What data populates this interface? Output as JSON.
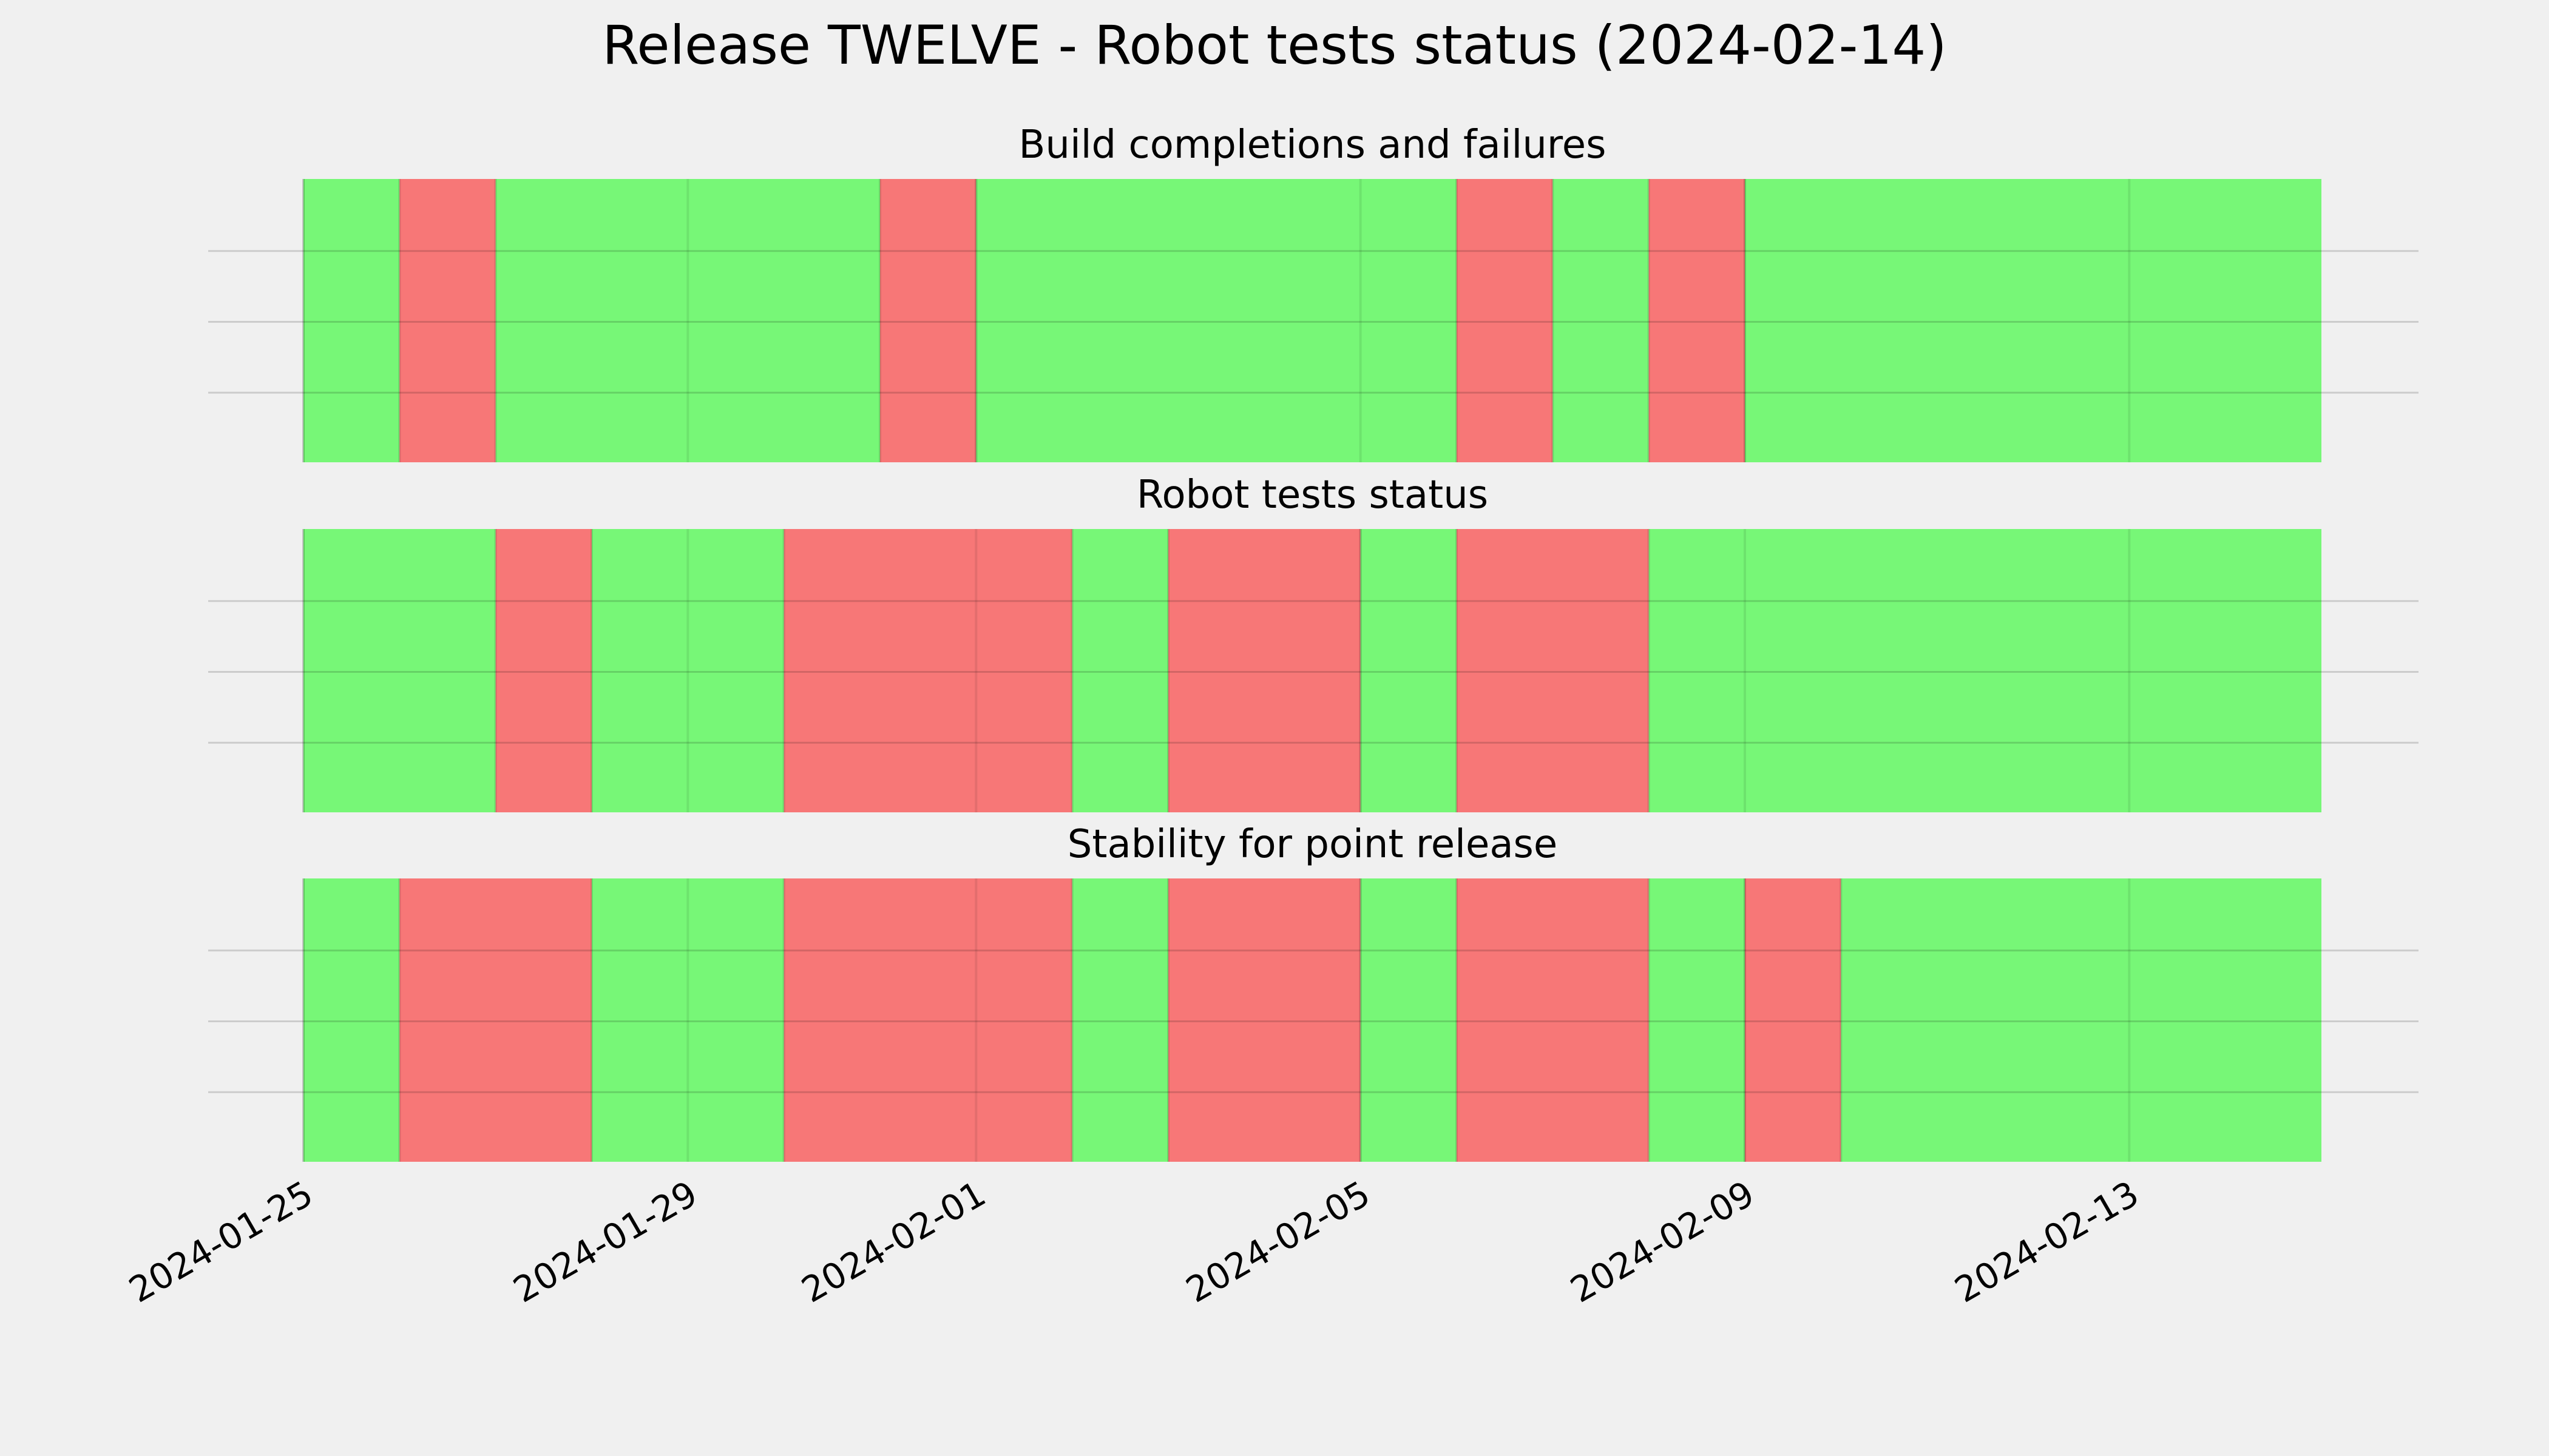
{
  "chart_data": {
    "type": "timeline-status",
    "title": "Release TWELVE - Robot tests status (2024-02-14)",
    "x_axis": {
      "start": "2024-01-25",
      "end": "2024-02-15",
      "tick_labels": [
        "2024-01-25",
        "2024-01-29",
        "2024-02-01",
        "2024-02-05",
        "2024-02-09",
        "2024-02-13"
      ]
    },
    "grid": true,
    "colors": {
      "pass": "#77f777",
      "fail": "#f77777",
      "background": "#f0f0f0"
    },
    "panels": [
      {
        "title": "Build completions and failures",
        "segments": [
          {
            "start": "2024-01-25",
            "end": "2024-01-26",
            "status": "pass"
          },
          {
            "start": "2024-01-26",
            "end": "2024-01-27",
            "status": "fail"
          },
          {
            "start": "2024-01-27",
            "end": "2024-01-31",
            "status": "pass"
          },
          {
            "start": "2024-01-31",
            "end": "2024-02-01",
            "status": "fail"
          },
          {
            "start": "2024-02-01",
            "end": "2024-02-06",
            "status": "pass"
          },
          {
            "start": "2024-02-06",
            "end": "2024-02-07",
            "status": "fail"
          },
          {
            "start": "2024-02-07",
            "end": "2024-02-08",
            "status": "pass"
          },
          {
            "start": "2024-02-08",
            "end": "2024-02-09",
            "status": "fail"
          },
          {
            "start": "2024-02-09",
            "end": "2024-02-15",
            "status": "pass"
          }
        ]
      },
      {
        "title": "Robot tests status",
        "segments": [
          {
            "start": "2024-01-25",
            "end": "2024-01-27",
            "status": "pass"
          },
          {
            "start": "2024-01-27",
            "end": "2024-01-28",
            "status": "fail"
          },
          {
            "start": "2024-01-28",
            "end": "2024-01-30",
            "status": "pass"
          },
          {
            "start": "2024-01-30",
            "end": "2024-02-02",
            "status": "fail"
          },
          {
            "start": "2024-02-02",
            "end": "2024-02-03",
            "status": "pass"
          },
          {
            "start": "2024-02-03",
            "end": "2024-02-05",
            "status": "fail"
          },
          {
            "start": "2024-02-05",
            "end": "2024-02-06",
            "status": "pass"
          },
          {
            "start": "2024-02-06",
            "end": "2024-02-08",
            "status": "fail"
          },
          {
            "start": "2024-02-08",
            "end": "2024-02-15",
            "status": "pass"
          }
        ]
      },
      {
        "title": "Stability for point release",
        "segments": [
          {
            "start": "2024-01-25",
            "end": "2024-01-26",
            "status": "pass"
          },
          {
            "start": "2024-01-26",
            "end": "2024-01-28",
            "status": "fail"
          },
          {
            "start": "2024-01-28",
            "end": "2024-01-30",
            "status": "pass"
          },
          {
            "start": "2024-01-30",
            "end": "2024-02-02",
            "status": "fail"
          },
          {
            "start": "2024-02-02",
            "end": "2024-02-03",
            "status": "pass"
          },
          {
            "start": "2024-02-03",
            "end": "2024-02-05",
            "status": "fail"
          },
          {
            "start": "2024-02-05",
            "end": "2024-02-06",
            "status": "pass"
          },
          {
            "start": "2024-02-06",
            "end": "2024-02-08",
            "status": "fail"
          },
          {
            "start": "2024-02-08",
            "end": "2024-02-09",
            "status": "pass"
          },
          {
            "start": "2024-02-09",
            "end": "2024-02-10",
            "status": "fail"
          },
          {
            "start": "2024-02-10",
            "end": "2024-02-15",
            "status": "pass"
          }
        ]
      }
    ]
  }
}
